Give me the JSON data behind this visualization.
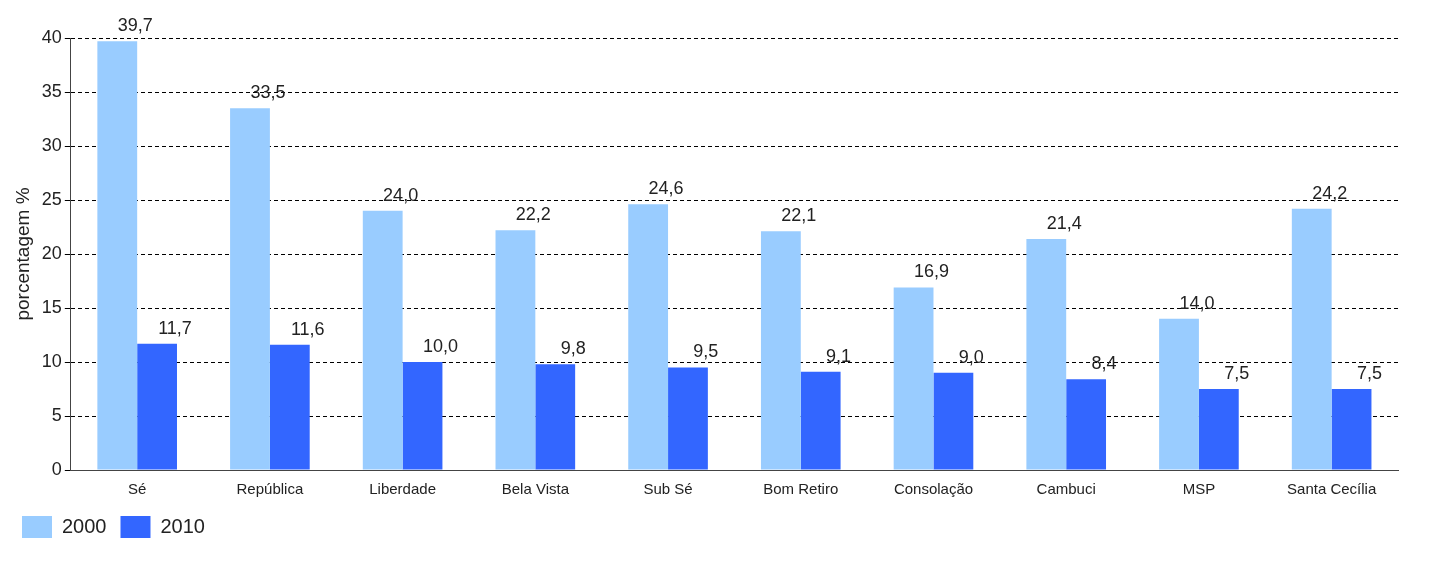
{
  "chart_data": {
    "type": "bar",
    "ylabel": "porcentagem %",
    "categories": [
      "Sé",
      "República",
      "Liberdade",
      "Bela Vista",
      "Sub Sé",
      "Bom Retiro",
      "Consolação",
      "Cambuci",
      "MSP",
      "Santa Cecília"
    ],
    "series": [
      {
        "name": "2000",
        "color": "#99ccff",
        "values": [
          39.7,
          33.5,
          24.0,
          22.2,
          24.6,
          22.1,
          16.9,
          21.4,
          14.0,
          24.2
        ],
        "value_labels": [
          "39,7",
          "33,5",
          "24,0",
          "22,2",
          "24,6",
          "22,1",
          "16,9",
          "21,4",
          "14,0",
          "24,2"
        ]
      },
      {
        "name": "2010",
        "color": "#3366ff",
        "values": [
          11.7,
          11.6,
          10.0,
          9.8,
          9.5,
          9.1,
          9.0,
          8.4,
          7.5,
          7.5
        ],
        "value_labels": [
          "11,7",
          "11,6",
          "10,0",
          "9,8",
          "9,5",
          "9,1",
          "9,0",
          "8,4",
          "7,5",
          "7,5"
        ]
      }
    ],
    "ylim": [
      0,
      40
    ],
    "yticks": [
      0,
      5,
      10,
      15,
      20,
      25,
      30,
      35,
      40
    ],
    "grid": "y",
    "line_style": "dashed",
    "legend": "bottom left"
  }
}
